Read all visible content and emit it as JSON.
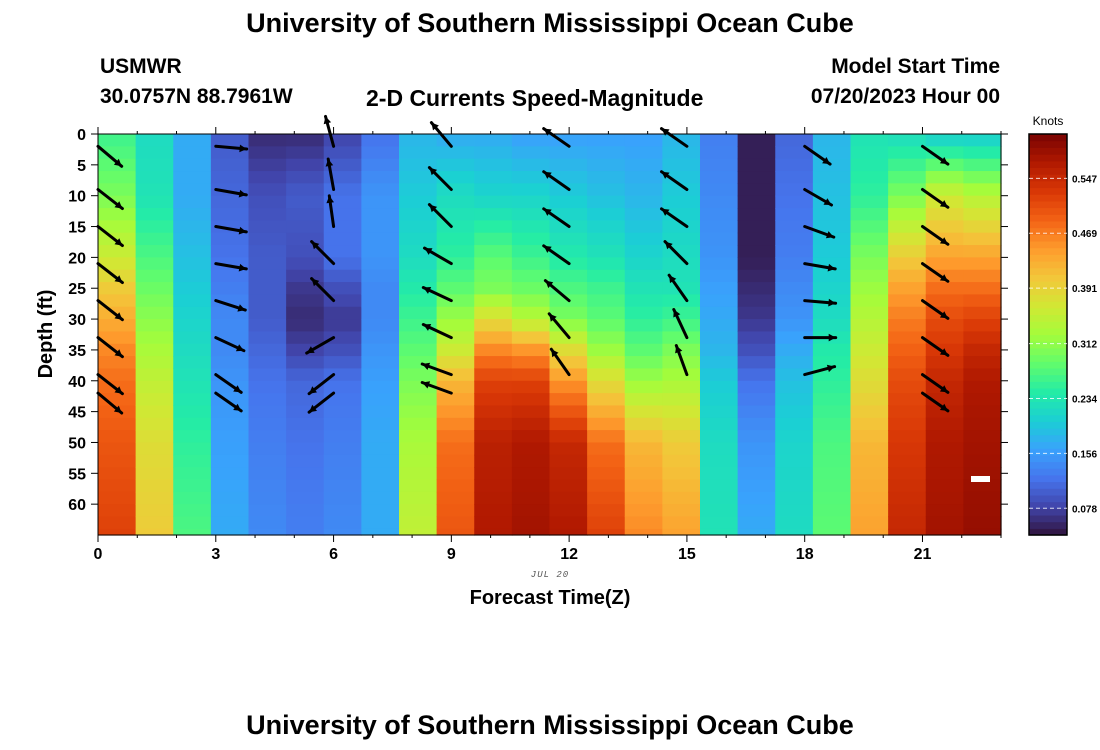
{
  "page": {
    "title": "University of Southern Mississippi Ocean Cube",
    "footer_title": "University of Southern Mississippi Ocean Cube",
    "station": "USMWR",
    "coords": "30.0757N  88.7961W",
    "subtitle": "2-D Currents Speed-Magnitude",
    "model_start_label": "Model Start Time",
    "model_start_value": "07/20/2023 Hour 00"
  },
  "chart_data": {
    "type": "heatmap",
    "title": "2-D Currents Speed-Magnitude",
    "xlabel": "Forecast Time(Z)",
    "ylabel": "Depth (ft)",
    "date_label": "JUL 20",
    "xlim": [
      0,
      23
    ],
    "ylim": [
      65,
      0
    ],
    "x_ticks": [
      0,
      3,
      6,
      9,
      12,
      15,
      18,
      21
    ],
    "y_ticks": [
      0,
      5,
      10,
      15,
      20,
      25,
      30,
      35,
      40,
      45,
      50,
      55,
      60
    ],
    "colorbar": {
      "unit": "Knots",
      "ticks": [
        "0.078",
        "0.156",
        "0.234",
        "0.312",
        "0.391",
        "0.469",
        "0.547"
      ],
      "tick_values": [
        0.078,
        0.156,
        0.234,
        0.312,
        0.391,
        0.469,
        0.547
      ],
      "min": 0.04,
      "max": 0.61
    },
    "hours": [
      0,
      1,
      2,
      3,
      4,
      5,
      6,
      7,
      8,
      9,
      10,
      11,
      12,
      13,
      14,
      15,
      16,
      17,
      18,
      19,
      20,
      21,
      22,
      23
    ],
    "speed_profiles": {
      "depths": [
        0,
        10,
        20,
        25,
        30,
        35,
        40,
        50,
        65
      ],
      "by_hour": [
        [
          0.26,
          0.3,
          0.36,
          0.4,
          0.43,
          0.46,
          0.48,
          0.5,
          0.52
        ],
        [
          0.22,
          0.23,
          0.27,
          0.29,
          0.31,
          0.33,
          0.35,
          0.38,
          0.4
        ],
        [
          0.17,
          0.17,
          0.19,
          0.2,
          0.21,
          0.22,
          0.23,
          0.25,
          0.27
        ],
        [
          0.1,
          0.11,
          0.12,
          0.13,
          0.14,
          0.14,
          0.15,
          0.16,
          0.17
        ],
        [
          0.06,
          0.09,
          0.1,
          0.1,
          0.1,
          0.11,
          0.12,
          0.13,
          0.14
        ],
        [
          0.06,
          0.1,
          0.09,
          0.07,
          0.06,
          0.08,
          0.11,
          0.12,
          0.13
        ],
        [
          0.08,
          0.12,
          0.12,
          0.09,
          0.07,
          0.09,
          0.12,
          0.13,
          0.14
        ],
        [
          0.12,
          0.15,
          0.15,
          0.14,
          0.14,
          0.15,
          0.16,
          0.17,
          0.17
        ],
        [
          0.18,
          0.2,
          0.22,
          0.24,
          0.26,
          0.28,
          0.3,
          0.33,
          0.35
        ],
        [
          0.17,
          0.22,
          0.25,
          0.28,
          0.32,
          0.36,
          0.42,
          0.48,
          0.5
        ],
        [
          0.17,
          0.21,
          0.28,
          0.3,
          0.38,
          0.46,
          0.52,
          0.56,
          0.57
        ],
        [
          0.16,
          0.21,
          0.26,
          0.29,
          0.34,
          0.45,
          0.52,
          0.57,
          0.58
        ],
        [
          0.16,
          0.2,
          0.24,
          0.27,
          0.3,
          0.38,
          0.45,
          0.55,
          0.57
        ],
        [
          0.16,
          0.19,
          0.23,
          0.26,
          0.28,
          0.32,
          0.38,
          0.48,
          0.52
        ],
        [
          0.16,
          0.18,
          0.21,
          0.23,
          0.25,
          0.28,
          0.32,
          0.42,
          0.46
        ],
        [
          0.18,
          0.2,
          0.22,
          0.23,
          0.26,
          0.3,
          0.33,
          0.4,
          0.44
        ],
        [
          0.13,
          0.14,
          0.15,
          0.16,
          0.17,
          0.18,
          0.2,
          0.22,
          0.23
        ],
        [
          0.05,
          0.05,
          0.05,
          0.06,
          0.07,
          0.09,
          0.12,
          0.15,
          0.17
        ],
        [
          0.11,
          0.12,
          0.13,
          0.14,
          0.15,
          0.17,
          0.19,
          0.21,
          0.22
        ],
        [
          0.18,
          0.19,
          0.2,
          0.21,
          0.22,
          0.24,
          0.25,
          0.27,
          0.28
        ],
        [
          0.23,
          0.25,
          0.3,
          0.32,
          0.34,
          0.36,
          0.38,
          0.42,
          0.44
        ],
        [
          0.22,
          0.3,
          0.4,
          0.44,
          0.47,
          0.49,
          0.51,
          0.53,
          0.55
        ],
        [
          0.2,
          0.36,
          0.44,
          0.48,
          0.51,
          0.53,
          0.55,
          0.57,
          0.58
        ],
        [
          0.2,
          0.34,
          0.44,
          0.48,
          0.52,
          0.55,
          0.57,
          0.58,
          0.59
        ]
      ]
    },
    "vectors": {
      "hours": [
        0,
        3,
        6,
        9,
        12,
        15,
        18,
        21
      ],
      "depths": [
        2,
        9,
        15,
        21,
        27,
        33,
        39
      ],
      "direction_deg_by_hour": [
        [
          130,
          128,
          128,
          128,
          128,
          128,
          128
        ],
        [
          95,
          100,
          100,
          100,
          108,
          115,
          125
        ],
        [
          -15,
          -10,
          -8,
          315,
          315,
          240,
          232
        ],
        [
          -40,
          -45,
          -45,
          300,
          295,
          295,
          290
        ],
        [
          -55,
          -55,
          -55,
          -55,
          -50,
          -40,
          -35
        ],
        [
          -55,
          -55,
          -55,
          -45,
          -35,
          -25,
          -20
        ],
        [
          125,
          120,
          110,
          100,
          95,
          90,
          75
        ],
        [
          125,
          125,
          125,
          125,
          125,
          125,
          125
        ]
      ],
      "extra": [
        {
          "hour": 3,
          "depth": 42,
          "direction_deg": 125
        },
        {
          "hour": 6,
          "depth": 42,
          "direction_deg": 232
        },
        {
          "hour": 9,
          "depth": 42,
          "direction_deg": 290
        },
        {
          "hour": 0,
          "depth": 42,
          "direction_deg": 130
        },
        {
          "hour": 21,
          "depth": 42,
          "direction_deg": 125
        }
      ]
    },
    "colors": {
      "stops": [
        "#30123b",
        "#4145ab",
        "#4675ed",
        "#39a2fc",
        "#1bcfd4",
        "#24eca6",
        "#61fc6c",
        "#a4fc3b",
        "#d1e834",
        "#f3c63a",
        "#fe9b2d",
        "#f36315",
        "#d93806",
        "#b11901",
        "#7a0402"
      ],
      "arrow": "#000000",
      "scale_marker": "#ffffff"
    }
  }
}
